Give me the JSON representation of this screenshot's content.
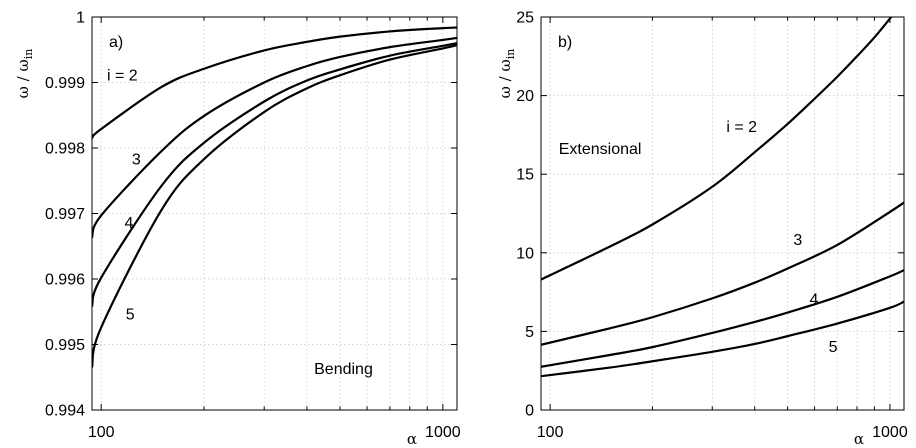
{
  "chart_data": [
    {
      "type": "line",
      "x_scale": "log",
      "xlim": [
        94,
        1100
      ],
      "ylim": [
        0.994,
        1
      ],
      "x_ticks": [
        100,
        1000
      ],
      "x_tick_labels": [
        "100",
        "1000"
      ],
      "y_ticks": [
        0.994,
        0.995,
        0.996,
        0.997,
        0.998,
        0.999,
        1
      ],
      "y_tick_labels": [
        "0.994",
        "0.995",
        "0.996",
        "0.997",
        "0.998",
        "0.999",
        "1"
      ],
      "xlabel": "α",
      "ylabel": "ω / ω",
      "ylabel_sub": "in",
      "grid": true,
      "panel_label": "a)",
      "annotations": [
        {
          "text": "i = 2",
          "x": 104,
          "y": 0.99903
        },
        {
          "text": "3",
          "x": 123,
          "y": 0.99775
        },
        {
          "text": "4",
          "x": 117,
          "y": 0.99678
        },
        {
          "text": "5",
          "x": 118,
          "y": 0.99538
        },
        {
          "text": "Bending",
          "x": 420,
          "y": 0.99455
        }
      ],
      "series": [
        {
          "x": [
            94,
            100,
            150,
            200,
            300,
            400,
            500,
            700,
            1000,
            1100
          ],
          "y": [
            0.99815,
            0.99829,
            0.99893,
            0.99921,
            0.99949,
            0.99962,
            0.9997,
            0.99978,
            0.99983,
            0.99984
          ]
        },
        {
          "x": [
            94,
            100,
            150,
            200,
            300,
            400,
            500,
            700,
            1000,
            1100
          ],
          "y": [
            0.99663,
            0.99697,
            0.99795,
            0.99849,
            0.999,
            0.99925,
            0.99939,
            0.99954,
            0.99965,
            0.99968
          ]
        },
        {
          "x": [
            94,
            100,
            150,
            200,
            300,
            400,
            500,
            700,
            1000,
            1100
          ],
          "y": [
            0.99558,
            0.99602,
            0.99742,
            0.99808,
            0.99871,
            0.99903,
            0.9992,
            0.99941,
            0.99956,
            0.9996
          ]
        },
        {
          "x": [
            94,
            100,
            150,
            200,
            300,
            400,
            500,
            700,
            1000,
            1100
          ],
          "y": [
            0.99465,
            0.99526,
            0.99705,
            0.99783,
            0.99855,
            0.99891,
            0.99911,
            0.99935,
            0.99952,
            0.99957
          ]
        }
      ]
    },
    {
      "type": "line",
      "x_scale": "log",
      "xlim": [
        94,
        1100
      ],
      "ylim": [
        0,
        25
      ],
      "x_ticks": [
        100,
        1000
      ],
      "x_tick_labels": [
        "100",
        "1000"
      ],
      "y_ticks": [
        0,
        5,
        10,
        15,
        20,
        25
      ],
      "y_tick_labels": [
        "0",
        "5",
        "10",
        "15",
        "20",
        "25"
      ],
      "xlabel": "α",
      "ylabel": "ω / ω",
      "ylabel_sub": "in",
      "grid": true,
      "panel_label": "b)",
      "annotations": [
        {
          "text": "i = 2",
          "x": 330,
          "y": 17.7
        },
        {
          "text": "Extensional",
          "x": 106,
          "y": 16.3
        },
        {
          "text": "3",
          "x": 520,
          "y": 10.5
        },
        {
          "text": "4",
          "x": 580,
          "y": 6.7
        },
        {
          "text": "5",
          "x": 660,
          "y": 3.7
        }
      ],
      "series": [
        {
          "x": [
            94,
            150,
            200,
            300,
            400,
            500,
            600,
            700,
            800,
            900,
            1000,
            1100
          ],
          "y": [
            8.3,
            10.4,
            11.8,
            14.2,
            16.4,
            18.2,
            19.8,
            21.2,
            22.5,
            23.7,
            24.9,
            26.0
          ]
        },
        {
          "x": [
            94,
            150,
            200,
            300,
            400,
            500,
            700,
            1000,
            1100
          ],
          "y": [
            4.15,
            5.2,
            5.9,
            7.1,
            8.1,
            9.0,
            10.5,
            12.6,
            13.2
          ]
        },
        {
          "x": [
            94,
            150,
            200,
            300,
            400,
            500,
            700,
            1000,
            1100
          ],
          "y": [
            2.75,
            3.5,
            4.0,
            4.9,
            5.6,
            6.2,
            7.2,
            8.5,
            8.9
          ]
        },
        {
          "x": [
            94,
            150,
            200,
            300,
            400,
            500,
            700,
            1000,
            1100
          ],
          "y": [
            2.15,
            2.7,
            3.1,
            3.7,
            4.2,
            4.7,
            5.5,
            6.5,
            6.9
          ]
        }
      ]
    }
  ]
}
